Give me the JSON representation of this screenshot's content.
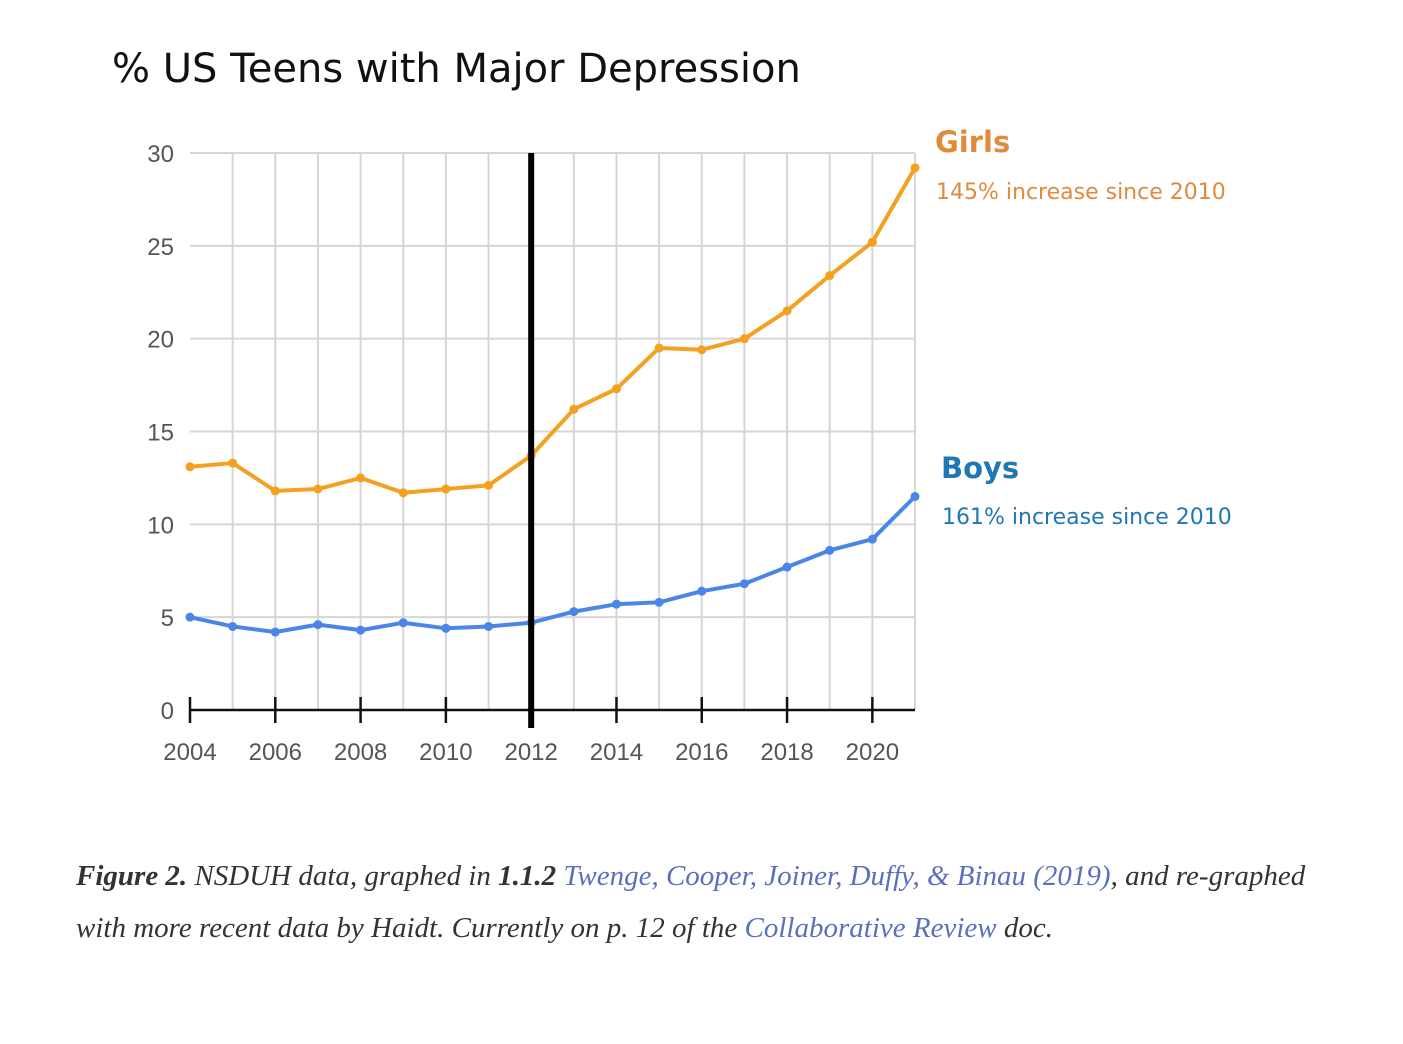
{
  "chart_data": {
    "type": "line",
    "title": "% US Teens with Major Depression",
    "xlabel": "",
    "ylabel": "",
    "x": [
      2004,
      2005,
      2006,
      2007,
      2008,
      2009,
      2010,
      2011,
      2012,
      2013,
      2014,
      2015,
      2016,
      2017,
      2018,
      2019,
      2020,
      2021
    ],
    "xlim": [
      2004,
      2021
    ],
    "ylim": [
      0,
      30
    ],
    "yticks": [
      "0",
      "5",
      "10",
      "15",
      "20",
      "25",
      "30"
    ],
    "xticks": [
      "2004",
      "2006",
      "2008",
      "2010",
      "2012",
      "2014",
      "2016",
      "2018",
      "2020"
    ],
    "grid": true,
    "vertical_marker": 2012,
    "series": [
      {
        "name": "Girls",
        "note": "145% increase since 2010",
        "color": "#f4a020",
        "label_color": "#e08a3c",
        "values": [
          13.1,
          13.3,
          11.8,
          11.9,
          12.5,
          11.7,
          11.9,
          12.1,
          13.7,
          16.2,
          17.3,
          19.5,
          19.4,
          20.0,
          21.5,
          23.4,
          25.2,
          29.2
        ]
      },
      {
        "name": "Boys",
        "note": "161% increase since 2010",
        "color": "#4a86e8",
        "label_color": "#1f77b4",
        "values": [
          5.0,
          4.5,
          4.2,
          4.6,
          4.3,
          4.7,
          4.4,
          4.5,
          4.7,
          5.3,
          5.7,
          5.8,
          6.4,
          6.8,
          7.7,
          8.6,
          9.2,
          11.5
        ]
      }
    ]
  },
  "caption": {
    "figure_label": "Figure 2.",
    "text1": " NSDUH data, graphed in ",
    "ref_bold": "1.1.2",
    "text2": " ",
    "link1": "Twenge, Cooper, Joiner, Duffy, & Binau (2019)",
    "text3": ", and re-graphed with more recent data by Haidt. Currently on p. 12 of the ",
    "link2": "Collaborative Review",
    "text4": " doc."
  }
}
